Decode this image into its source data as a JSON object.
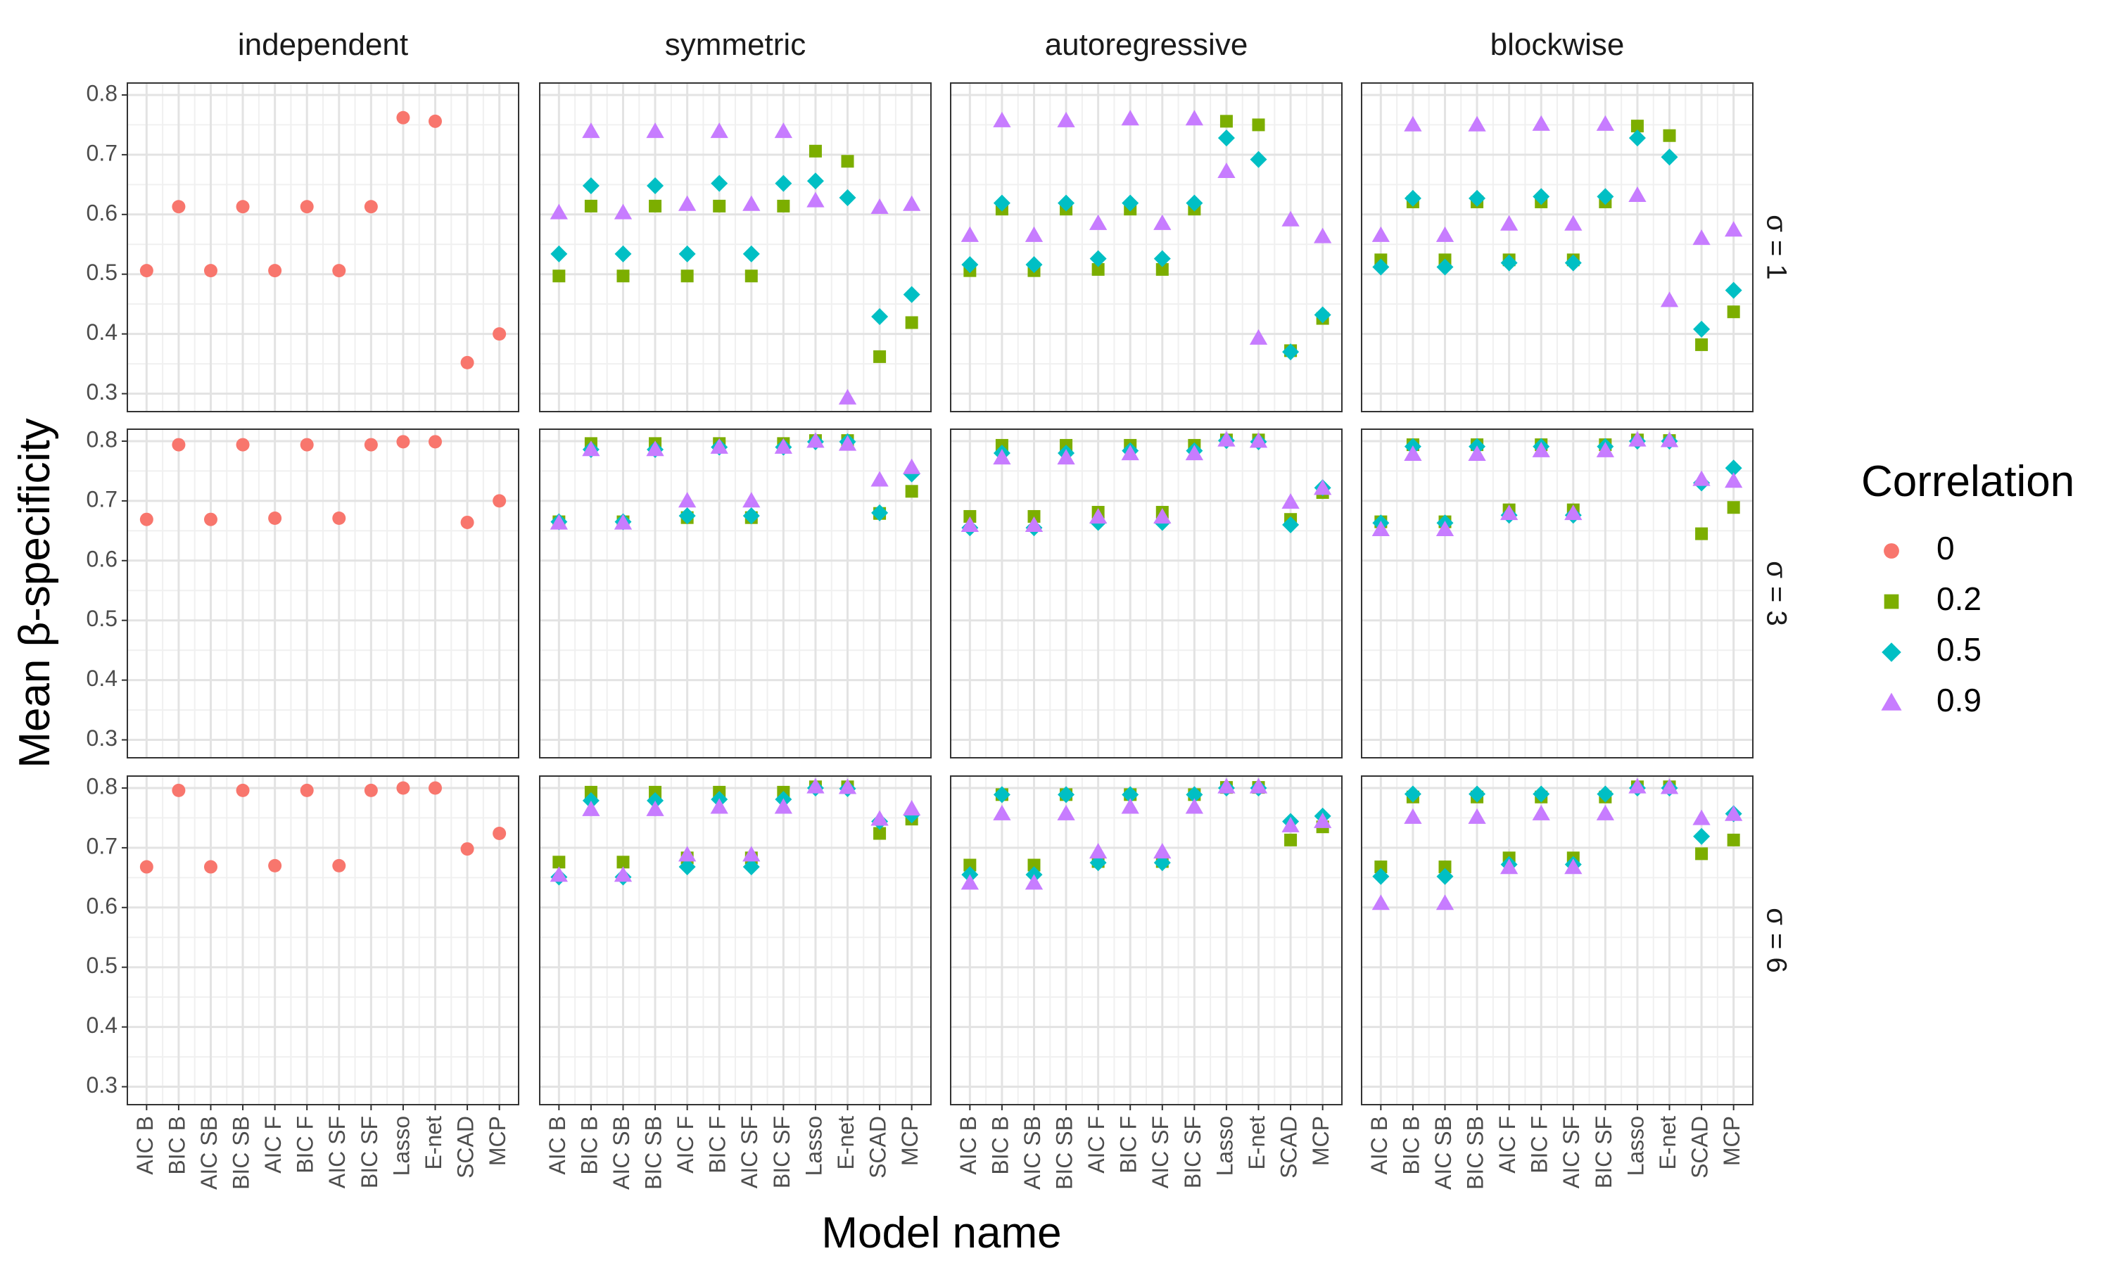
{
  "chart_data": {
    "type": "scatter",
    "facet_columns": [
      "independent",
      "symmetric",
      "autoregressive",
      "blockwise"
    ],
    "facet_rows": [
      "σ = 1",
      "σ = 3",
      "σ = 6"
    ],
    "categories": [
      "AIC B",
      "BIC B",
      "AIC SB",
      "BIC SB",
      "AIC F",
      "BIC F",
      "AIC SF",
      "BIC SF",
      "Lasso",
      "E-net",
      "SCAD",
      "MCP"
    ],
    "xlabel": "Model name",
    "ylabel": "Mean β-specificity",
    "ylim": [
      0.27,
      0.82
    ],
    "yticks": [
      "0.3",
      "0.4",
      "0.5",
      "0.6",
      "0.7",
      "0.8"
    ],
    "grid": true,
    "legend": {
      "title": "Correlation",
      "position": "right",
      "entries": [
        {
          "label": "0",
          "color": "#F8766D",
          "shape": "circle"
        },
        {
          "label": "0.2",
          "color": "#7CAE00",
          "shape": "square"
        },
        {
          "label": "0.5",
          "color": "#00BFC4",
          "shape": "diamond"
        },
        {
          "label": "0.9",
          "color": "#C77CFF",
          "shape": "triangle"
        }
      ]
    },
    "panels": [
      {
        "row": 0,
        "col": 0,
        "series": [
          {
            "name": "0",
            "values": [
              0.506,
              0.613,
              0.506,
              0.613,
              0.506,
              0.613,
              0.506,
              0.613,
              0.762,
              0.756,
              0.352,
              0.4
            ]
          }
        ]
      },
      {
        "row": 0,
        "col": 1,
        "series": [
          {
            "name": "0.2",
            "values": [
              0.497,
              0.614,
              0.497,
              0.614,
              0.497,
              0.614,
              0.497,
              0.614,
              0.706,
              0.689,
              0.362,
              0.419
            ]
          },
          {
            "name": "0.5",
            "values": [
              0.534,
              0.648,
              0.534,
              0.648,
              0.534,
              0.652,
              0.534,
              0.652,
              0.656,
              0.628,
              0.429,
              0.466
            ]
          },
          {
            "name": "0.9",
            "values": [
              0.603,
              0.739,
              0.603,
              0.739,
              0.617,
              0.739,
              0.617,
              0.739,
              0.623,
              0.293,
              0.612,
              0.617
            ]
          }
        ]
      },
      {
        "row": 0,
        "col": 2,
        "series": [
          {
            "name": "0.2",
            "values": [
              0.506,
              0.609,
              0.506,
              0.609,
              0.508,
              0.609,
              0.508,
              0.609,
              0.756,
              0.75,
              0.372,
              0.426
            ]
          },
          {
            "name": "0.5",
            "values": [
              0.516,
              0.619,
              0.516,
              0.619,
              0.526,
              0.619,
              0.526,
              0.619,
              0.728,
              0.692,
              0.37,
              0.432
            ]
          },
          {
            "name": "0.9",
            "values": [
              0.565,
              0.757,
              0.565,
              0.757,
              0.585,
              0.76,
              0.585,
              0.76,
              0.672,
              0.393,
              0.591,
              0.563
            ]
          }
        ]
      },
      {
        "row": 0,
        "col": 3,
        "series": [
          {
            "name": "0.2",
            "values": [
              0.524,
              0.621,
              0.524,
              0.621,
              0.524,
              0.621,
              0.524,
              0.621,
              0.748,
              0.732,
              0.382,
              0.437
            ]
          },
          {
            "name": "0.5",
            "values": [
              0.512,
              0.627,
              0.512,
              0.627,
              0.519,
              0.63,
              0.519,
              0.63,
              0.728,
              0.696,
              0.408,
              0.473
            ]
          },
          {
            "name": "0.9",
            "values": [
              0.565,
              0.75,
              0.565,
              0.75,
              0.584,
              0.751,
              0.584,
              0.751,
              0.632,
              0.456,
              0.56,
              0.574
            ]
          }
        ]
      },
      {
        "row": 1,
        "col": 0,
        "series": [
          {
            "name": "0",
            "values": [
              0.669,
              0.794,
              0.669,
              0.794,
              0.671,
              0.794,
              0.671,
              0.794,
              0.799,
              0.799,
              0.664,
              0.7
            ]
          }
        ]
      },
      {
        "row": 1,
        "col": 1,
        "series": [
          {
            "name": "0.2",
            "values": [
              0.665,
              0.796,
              0.665,
              0.796,
              0.672,
              0.796,
              0.672,
              0.796,
              0.801,
              0.801,
              0.679,
              0.716
            ]
          },
          {
            "name": "0.5",
            "values": [
              0.665,
              0.786,
              0.665,
              0.786,
              0.675,
              0.79,
              0.675,
              0.79,
              0.799,
              0.799,
              0.68,
              0.745
            ]
          },
          {
            "name": "0.9",
            "values": [
              0.663,
              0.786,
              0.663,
              0.786,
              0.7,
              0.79,
              0.7,
              0.79,
              0.8,
              0.795,
              0.735,
              0.756
            ]
          }
        ]
      },
      {
        "row": 1,
        "col": 2,
        "series": [
          {
            "name": "0.2",
            "values": [
              0.674,
              0.793,
              0.674,
              0.793,
              0.681,
              0.793,
              0.681,
              0.793,
              0.802,
              0.802,
              0.669,
              0.714
            ]
          },
          {
            "name": "0.5",
            "values": [
              0.655,
              0.78,
              0.655,
              0.78,
              0.664,
              0.784,
              0.664,
              0.784,
              0.801,
              0.799,
              0.66,
              0.722
            ]
          },
          {
            "name": "0.9",
            "values": [
              0.659,
              0.772,
              0.659,
              0.772,
              0.673,
              0.779,
              0.673,
              0.779,
              0.802,
              0.8,
              0.698,
              0.721
            ]
          }
        ]
      },
      {
        "row": 1,
        "col": 3,
        "series": [
          {
            "name": "0.2",
            "values": [
              0.665,
              0.794,
              0.665,
              0.794,
              0.685,
              0.794,
              0.685,
              0.794,
              0.802,
              0.801,
              0.645,
              0.689
            ]
          },
          {
            "name": "0.5",
            "values": [
              0.663,
              0.791,
              0.663,
              0.791,
              0.676,
              0.791,
              0.676,
              0.791,
              0.8,
              0.8,
              0.73,
              0.755
            ]
          },
          {
            "name": "0.9",
            "values": [
              0.652,
              0.778,
              0.652,
              0.778,
              0.679,
              0.784,
              0.679,
              0.784,
              0.802,
              0.801,
              0.736,
              0.733
            ]
          }
        ]
      },
      {
        "row": 2,
        "col": 0,
        "series": [
          {
            "name": "0",
            "values": [
              0.668,
              0.796,
              0.668,
              0.796,
              0.67,
              0.796,
              0.67,
              0.796,
              0.8,
              0.8,
              0.698,
              0.724
            ]
          }
        ]
      },
      {
        "row": 2,
        "col": 1,
        "series": [
          {
            "name": "0.2",
            "values": [
              0.676,
              0.793,
              0.676,
              0.793,
              0.683,
              0.793,
              0.683,
              0.793,
              0.802,
              0.802,
              0.724,
              0.748
            ]
          },
          {
            "name": "0.5",
            "values": [
              0.651,
              0.779,
              0.651,
              0.779,
              0.668,
              0.781,
              0.668,
              0.781,
              0.8,
              0.799,
              0.744,
              0.755
            ]
          },
          {
            "name": "0.9",
            "values": [
              0.654,
              0.764,
              0.654,
              0.764,
              0.688,
              0.768,
              0.688,
              0.768,
              0.802,
              0.801,
              0.748,
              0.765
            ]
          }
        ]
      },
      {
        "row": 2,
        "col": 2,
        "series": [
          {
            "name": "0.2",
            "values": [
              0.671,
              0.789,
              0.671,
              0.789,
              0.677,
              0.789,
              0.677,
              0.789,
              0.801,
              0.801,
              0.713,
              0.735
            ]
          },
          {
            "name": "0.5",
            "values": [
              0.655,
              0.789,
              0.655,
              0.789,
              0.675,
              0.789,
              0.675,
              0.789,
              0.8,
              0.8,
              0.744,
              0.753
            ]
          },
          {
            "name": "0.9",
            "values": [
              0.641,
              0.757,
              0.641,
              0.757,
              0.693,
              0.768,
              0.693,
              0.768,
              0.802,
              0.802,
              0.737,
              0.744
            ]
          }
        ]
      },
      {
        "row": 2,
        "col": 3,
        "series": [
          {
            "name": "0.2",
            "values": [
              0.668,
              0.785,
              0.668,
              0.785,
              0.683,
              0.785,
              0.683,
              0.785,
              0.802,
              0.802,
              0.69,
              0.713
            ]
          },
          {
            "name": "0.5",
            "values": [
              0.652,
              0.79,
              0.652,
              0.79,
              0.672,
              0.79,
              0.672,
              0.79,
              0.8,
              0.8,
              0.719,
              0.757
            ]
          },
          {
            "name": "0.9",
            "values": [
              0.607,
              0.751,
              0.607,
              0.751,
              0.667,
              0.757,
              0.667,
              0.757,
              0.802,
              0.801,
              0.749,
              0.756
            ]
          }
        ]
      }
    ]
  }
}
